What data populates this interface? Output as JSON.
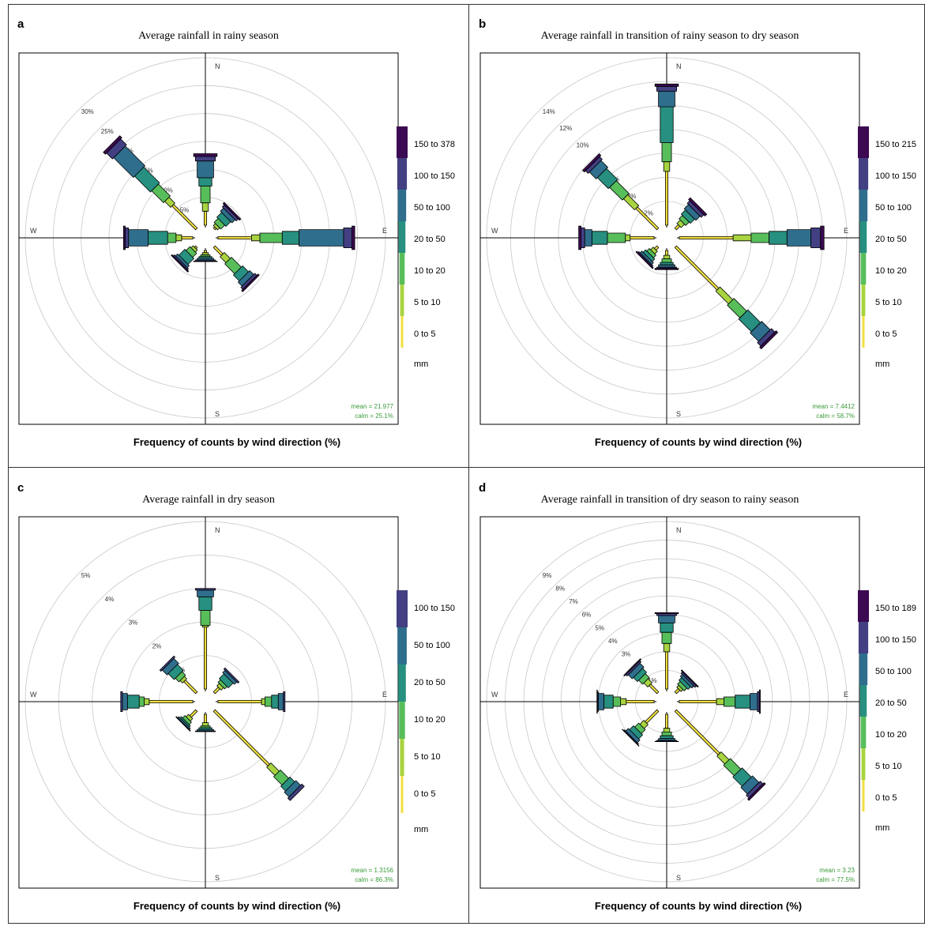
{
  "colors": {
    "0 to 5": "#f0e040",
    "5 to 10": "#a8d440",
    "10 to 20": "#58be5a",
    "20 to 50": "#279080",
    "50 to 100": "#2f6e8c",
    "100 to 150": "#423f82",
    "150+": "#3c0a52"
  },
  "axis_caption": "Frequency of counts by wind direction (%)",
  "chart_data": [
    {
      "type": "windrose",
      "panel_letter": "a",
      "title": "Average rainfall in rainy season",
      "compass": [
        "N",
        "E",
        "S",
        "W"
      ],
      "ring_labels": [
        "5%",
        "10%",
        "15%",
        "20%",
        "25%",
        "30%"
      ],
      "ring_values": [
        5,
        10,
        15,
        20,
        25,
        30
      ],
      "rmax": 30,
      "legend_bins": [
        "0 to 5",
        "5 to 10",
        "10 to 20",
        "20 to 50",
        "50 to 100",
        "100 to 150",
        "150 to 378"
      ],
      "legend_unit": "mm",
      "stats": {
        "mean": "mean = 21.977",
        "calm": "calm = 25.1%"
      },
      "spokes": [
        {
          "dir": 0,
          "values": [
            2.5,
            1.5,
            3.0,
            1.5,
            3.0,
            0.8,
            0.5
          ]
        },
        {
          "dir": 45,
          "values": [
            0.3,
            0.5,
            1.0,
            1.2,
            0.8,
            0.5,
            0.3
          ]
        },
        {
          "dir": 90,
          "values": [
            6.0,
            1.5,
            4.0,
            3.0,
            8.0,
            1.5,
            0.5
          ]
        },
        {
          "dir": 135,
          "values": [
            2.0,
            1.5,
            2.5,
            1.5,
            1.0,
            0.5,
            0.3
          ]
        },
        {
          "dir": 180,
          "values": [
            0.4,
            0.4,
            0.3,
            0.3,
            0.3,
            0.2,
            0.1
          ]
        },
        {
          "dir": 225,
          "values": [
            0.3,
            0.5,
            1.0,
            1.5,
            0.5,
            0.3,
            0.2
          ]
        },
        {
          "dir": 270,
          "values": [
            2.0,
            1.0,
            1.5,
            3.5,
            3.5,
            0.6,
            0.3
          ]
        },
        {
          "dir": 315,
          "values": [
            6.0,
            1.5,
            3.0,
            4.0,
            5.0,
            1.5,
            0.5
          ]
        }
      ]
    },
    {
      "type": "windrose",
      "panel_letter": "b",
      "title": "Average rainfall in transition of rainy season to dry season",
      "compass": [
        "N",
        "E",
        "S",
        "W"
      ],
      "ring_labels": [
        "2%",
        "4%",
        "6%",
        "8%",
        "10%",
        "12%",
        "14%"
      ],
      "ring_values": [
        2,
        4,
        6,
        8,
        10,
        12,
        14
      ],
      "rmax": 14,
      "legend_bins": [
        "0 to 5",
        "5 to 10",
        "10 to 20",
        "20 to 50",
        "50 to 100",
        "100 to 150",
        "150 to 215"
      ],
      "legend_unit": "mm",
      "stats": {
        "mean": "mean = 7.4412",
        "calm": "calm = 58.7%"
      },
      "spokes": [
        {
          "dir": 0,
          "values": [
            4.5,
            0.8,
            1.6,
            3.0,
            1.3,
            0.4,
            0.2
          ]
        },
        {
          "dir": 45,
          "values": [
            0.4,
            0.4,
            0.4,
            0.5,
            0.5,
            0.3,
            0.2
          ]
        },
        {
          "dir": 90,
          "values": [
            4.5,
            1.5,
            1.5,
            1.5,
            2.0,
            0.8,
            0.3
          ]
        },
        {
          "dir": 135,
          "values": [
            5.0,
            1.5,
            1.5,
            1.5,
            1.0,
            0.4,
            0.2
          ]
        },
        {
          "dir": 180,
          "values": [
            0.4,
            0.3,
            0.3,
            0.2,
            0.2,
            0.1,
            0.1
          ]
        },
        {
          "dir": 225,
          "values": [
            0.3,
            0.3,
            0.3,
            0.3,
            0.2,
            0.1,
            0.1
          ]
        },
        {
          "dir": 270,
          "values": [
            2.0,
            0.4,
            1.5,
            1.3,
            0.6,
            0.3,
            0.2
          ]
        },
        {
          "dir": 315,
          "values": [
            2.5,
            1.3,
            1.5,
            1.3,
            0.8,
            0.3,
            0.2
          ]
        }
      ]
    },
    {
      "type": "windrose",
      "panel_letter": "c",
      "title": "Average rainfall in dry season",
      "compass": [
        "N",
        "E",
        "S",
        "W"
      ],
      "ring_labels": [
        "1%",
        "2%",
        "3%",
        "4%",
        "5%"
      ],
      "ring_values": [
        1,
        2,
        3,
        4,
        5
      ],
      "rmax": 5,
      "legend_bins": [
        "0 to 5",
        "5 to 10",
        "10 to 20",
        "20 to 50",
        "50 to 100",
        "100 to 150"
      ],
      "legend_unit": "mm",
      "stats": {
        "mean": "mean = 1.3156",
        "calm": "calm = 86.3%"
      },
      "spokes": [
        {
          "dir": 0,
          "values": [
            1.85,
            0.05,
            0.45,
            0.4,
            0.2,
            0.05
          ]
        },
        {
          "dir": 45,
          "values": [
            0.2,
            0.1,
            0.1,
            0.2,
            0.1,
            0.05
          ]
        },
        {
          "dir": 90,
          "values": [
            1.3,
            0.1,
            0.2,
            0.2,
            0.15,
            0.05
          ]
        },
        {
          "dir": 135,
          "values": [
            2.3,
            0.35,
            0.35,
            0.2,
            0.2,
            0.1
          ]
        },
        {
          "dir": 180,
          "values": [
            0.25,
            0.1,
            0.05,
            0.05,
            0.05,
            0.02
          ]
        },
        {
          "dir": 225,
          "values": [
            0.25,
            0.1,
            0.1,
            0.05,
            0.05,
            0.02
          ]
        },
        {
          "dir": 270,
          "values": [
            1.3,
            0.15,
            0.15,
            0.35,
            0.15,
            0.05
          ]
        },
        {
          "dir": 315,
          "values": [
            0.5,
            0.1,
            0.15,
            0.25,
            0.2,
            0.05
          ]
        }
      ]
    },
    {
      "type": "windrose",
      "panel_letter": "d",
      "title": "Average rainfall in transition of dry season to rainy season",
      "compass": [
        "N",
        "E",
        "S",
        "W"
      ],
      "ring_labels": [
        "1%",
        "2%",
        "3%",
        "4%",
        "5%",
        "6%",
        "7%",
        "8%",
        "9%"
      ],
      "ring_values": [
        1,
        2,
        3,
        4,
        5,
        6,
        7,
        8,
        9
      ],
      "rmax": 9,
      "legend_bins": [
        "0 to 5",
        "5 to 10",
        "10 to 20",
        "20 to 50",
        "50 to 100",
        "100 to 150",
        "150 to 189"
      ],
      "legend_unit": "mm",
      "stats": {
        "mean": "mean = 3.23",
        "calm": "calm = 77.5%"
      },
      "spokes": [
        {
          "dir": 0,
          "values": [
            2.0,
            0.45,
            0.6,
            0.5,
            0.4,
            0.1,
            0.05
          ]
        },
        {
          "dir": 45,
          "values": [
            0.25,
            0.15,
            0.2,
            0.2,
            0.15,
            0.1,
            0.05
          ]
        },
        {
          "dir": 90,
          "values": [
            2.0,
            0.4,
            0.6,
            0.8,
            0.4,
            0.1,
            0.05
          ]
        },
        {
          "dir": 135,
          "values": [
            3.3,
            0.6,
            0.8,
            0.7,
            0.5,
            0.2,
            0.1
          ]
        },
        {
          "dir": 180,
          "values": [
            0.75,
            0.2,
            0.2,
            0.15,
            0.1,
            0.05,
            0.02
          ]
        },
        {
          "dir": 225,
          "values": [
            0.9,
            0.3,
            0.3,
            0.3,
            0.2,
            0.05,
            0.02
          ]
        },
        {
          "dir": 270,
          "values": [
            1.5,
            0.3,
            0.4,
            0.5,
            0.3,
            0.05,
            0.02
          ]
        },
        {
          "dir": 315,
          "values": [
            0.6,
            0.3,
            0.3,
            0.3,
            0.3,
            0.1,
            0.05
          ]
        }
      ]
    }
  ]
}
